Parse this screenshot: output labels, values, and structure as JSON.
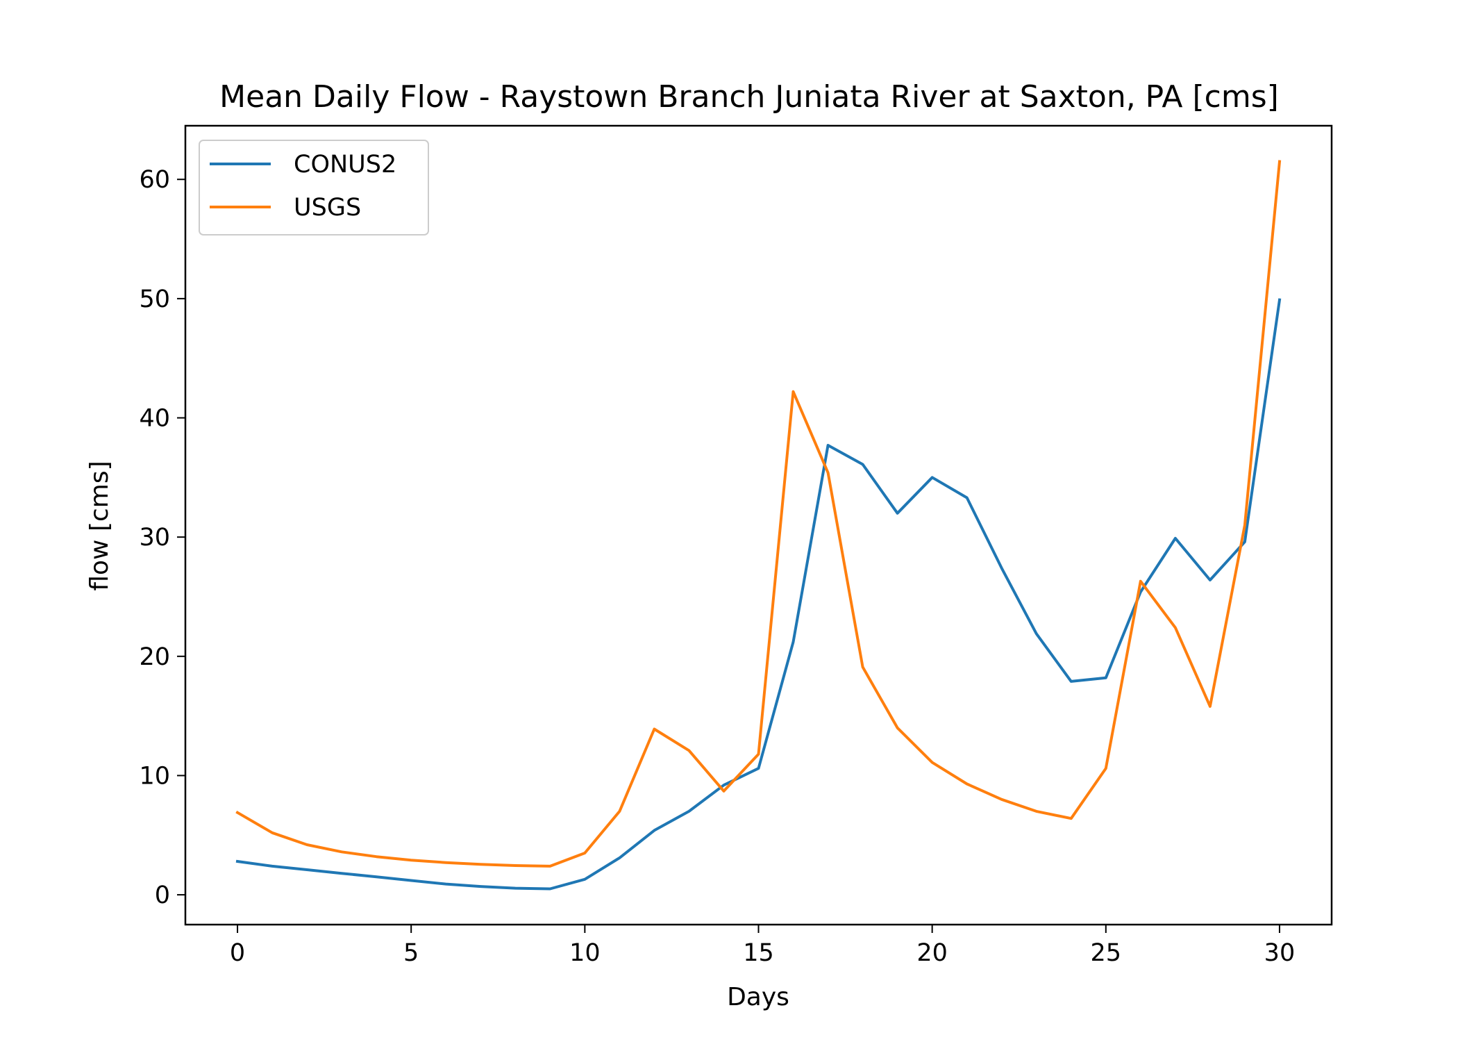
{
  "chart_data": {
    "type": "line",
    "title": "Mean Daily Flow - Raystown Branch Juniata River at Saxton, PA [cms]",
    "xlabel": "Days",
    "ylabel": "flow [cms]",
    "xlim": [
      -1.5,
      31.5
    ],
    "ylim": [
      -2.5,
      64.5
    ],
    "xticks": [
      0,
      5,
      10,
      15,
      20,
      25,
      30
    ],
    "yticks": [
      0,
      10,
      20,
      30,
      40,
      50,
      60
    ],
    "grid": false,
    "legend_position": "top-left",
    "x": [
      0,
      1,
      2,
      3,
      4,
      5,
      6,
      7,
      8,
      9,
      10,
      11,
      12,
      13,
      14,
      15,
      16,
      17,
      18,
      19,
      20,
      21,
      22,
      23,
      24,
      25,
      26,
      27,
      28,
      29,
      30
    ],
    "series": [
      {
        "name": "CONUS2",
        "color": "#1f77b4",
        "values": [
          2.8,
          2.4,
          2.1,
          1.8,
          1.5,
          1.2,
          0.9,
          0.7,
          0.55,
          0.5,
          1.3,
          3.1,
          5.4,
          7.0,
          9.2,
          10.6,
          21.2,
          37.7,
          36.1,
          32.0,
          35.0,
          33.3,
          27.4,
          21.9,
          17.9,
          18.2,
          25.4,
          29.9,
          26.4,
          29.6,
          49.9
        ]
      },
      {
        "name": "USGS",
        "color": "#ff7f0e",
        "values": [
          6.9,
          5.2,
          4.2,
          3.6,
          3.2,
          2.9,
          2.7,
          2.55,
          2.45,
          2.4,
          3.5,
          7.0,
          13.9,
          12.1,
          8.7,
          11.8,
          42.2,
          35.4,
          19.1,
          14.0,
          11.1,
          9.3,
          8.0,
          7.0,
          6.4,
          10.6,
          26.3,
          22.4,
          15.8,
          31.0,
          61.5
        ]
      }
    ]
  }
}
